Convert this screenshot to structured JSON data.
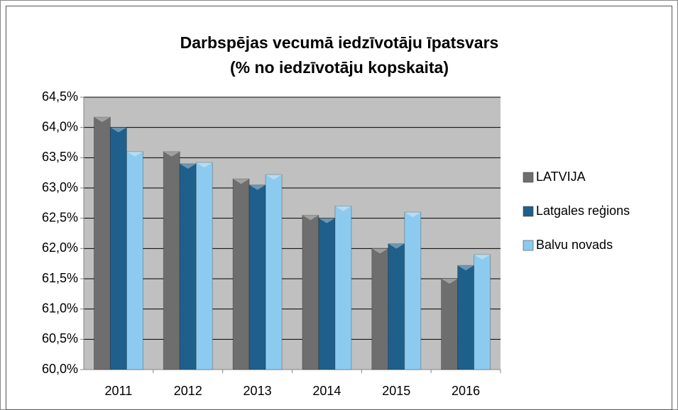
{
  "chart_data": {
    "type": "bar",
    "title": "Darbspējas vecumā iedzīvotāju īpatsvars",
    "subtitle": "(% no iedzīvotāju kopskaita)",
    "categories": [
      "2011",
      "2012",
      "2013",
      "2014",
      "2015",
      "2016"
    ],
    "series": [
      {
        "name": "LATVIJA",
        "color": "#6e6e6e",
        "values": [
          64.17,
          63.6,
          63.15,
          62.55,
          62.0,
          61.5
        ]
      },
      {
        "name": "Latgales reģions",
        "color": "#1f5f8b",
        "values": [
          64.0,
          63.4,
          63.05,
          62.5,
          62.08,
          61.72
        ]
      },
      {
        "name": "Balvu novads",
        "color": "#8ccbef",
        "values": [
          63.6,
          63.42,
          63.22,
          62.7,
          62.6,
          61.9
        ]
      }
    ],
    "ylim": [
      60,
      64.5
    ],
    "yticks": [
      {
        "value": 60,
        "label": "60,0%"
      },
      {
        "value": 60.5,
        "label": "60,5%"
      },
      {
        "value": 61,
        "label": "61,0%"
      },
      {
        "value": 61.5,
        "label": "61,5%"
      },
      {
        "value": 62,
        "label": "62,0%"
      },
      {
        "value": 62.5,
        "label": "62,5%"
      },
      {
        "value": 63,
        "label": "63,0%"
      },
      {
        "value": 63.5,
        "label": "63,5%"
      },
      {
        "value": 64,
        "label": "64,0%"
      },
      {
        "value": 64.5,
        "label": "64,5%"
      }
    ],
    "grid": true,
    "legend": "right"
  }
}
